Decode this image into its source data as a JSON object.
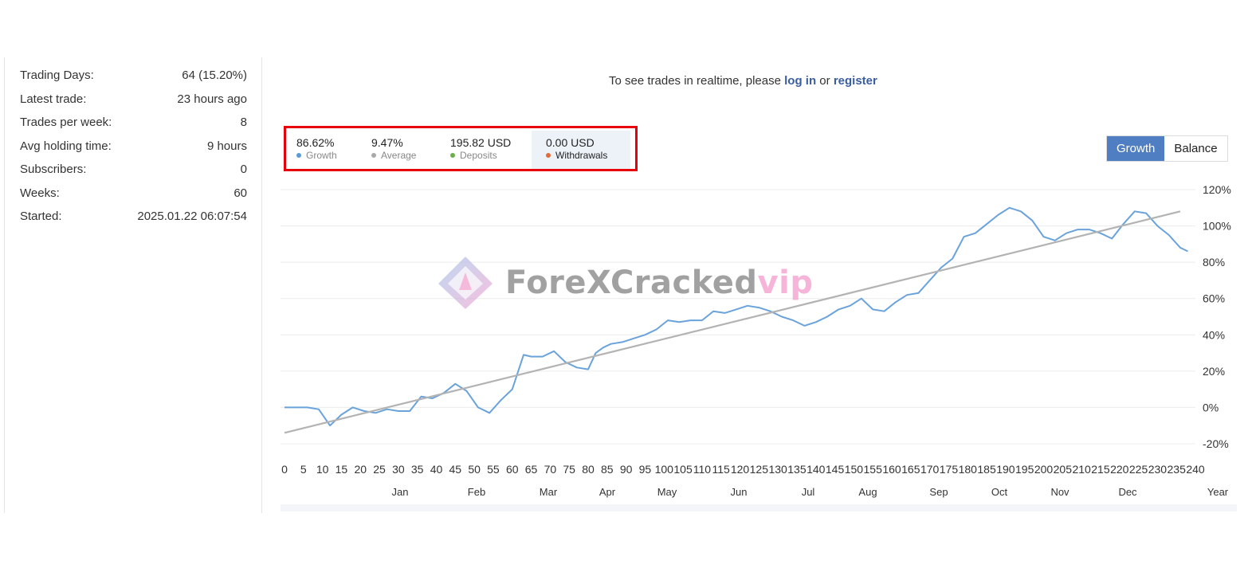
{
  "stats": [
    {
      "label": "Trading Days:",
      "value": "64 (15.20%)"
    },
    {
      "label": "Latest trade:",
      "value": "23 hours ago"
    },
    {
      "label": "Trades per week:",
      "value": "8"
    },
    {
      "label": "Avg holding time:",
      "value": "9 hours"
    },
    {
      "label": "Subscribers:",
      "value": "0"
    },
    {
      "label": "Weeks:",
      "value": "60"
    },
    {
      "label": "Started:",
      "value": "2025.01.22 06:07:54"
    }
  ],
  "notice": {
    "prefix": "To see trades in realtime, please",
    "login": "log in",
    "or": "or",
    "register": "register"
  },
  "summary": {
    "growth": {
      "value": "86.62%",
      "label": "Growth",
      "color": "#5b9bd5"
    },
    "average": {
      "value": "9.47%",
      "label": "Average",
      "color": "#a9a9a9"
    },
    "deposits": {
      "value": "195.82 USD",
      "label": "Deposits",
      "color": "#6ab04c"
    },
    "withdrawals": {
      "value": "0.00 USD",
      "label": "Withdrawals",
      "color": "#e06c3c"
    }
  },
  "toggle": {
    "growth": "Growth",
    "balance": "Balance",
    "active": "Growth"
  },
  "watermark": {
    "main": "ForeXCracked",
    "suffix": "vip"
  },
  "chart_data": {
    "type": "line",
    "x_ticks": [
      0,
      5,
      10,
      15,
      20,
      25,
      30,
      35,
      40,
      45,
      50,
      55,
      60,
      65,
      70,
      75,
      80,
      85,
      90,
      95,
      100,
      105,
      110,
      115,
      120,
      125,
      130,
      135,
      140,
      145,
      150,
      155,
      160,
      165,
      170,
      175,
      180,
      185,
      190,
      195,
      200,
      205,
      210,
      215,
      220,
      225,
      230,
      235,
      240
    ],
    "month_labels": [
      "Jan",
      "Feb",
      "Mar",
      "Apr",
      "May",
      "Jun",
      "Jul",
      "Aug",
      "Sep",
      "Oct",
      "Nov",
      "Dec"
    ],
    "year_label": "Year",
    "y_ticks": [
      "120%",
      "100%",
      "80%",
      "60%",
      "40%",
      "20%",
      "0%",
      "-20%"
    ],
    "ylim": [
      -20,
      120
    ],
    "xlim": [
      0,
      240
    ],
    "series": [
      {
        "name": "Growth",
        "color": "#6aa3dc",
        "x": [
          0,
          3,
          6,
          9,
          12,
          15,
          18,
          21,
          24,
          27,
          30,
          33,
          36,
          39,
          42,
          45,
          48,
          51,
          54,
          57,
          60,
          63,
          65,
          68,
          71,
          74,
          77,
          80,
          82,
          84,
          86,
          89,
          92,
          95,
          98,
          101,
          104,
          107,
          110,
          113,
          116,
          119,
          122,
          125,
          128,
          131,
          134,
          137,
          140,
          143,
          146,
          149,
          152,
          155,
          158,
          161,
          164,
          167,
          170,
          173,
          176,
          179,
          182,
          185,
          188,
          191,
          194,
          197,
          200,
          203,
          206,
          209,
          212,
          215,
          218,
          221,
          224,
          227,
          230,
          233,
          236,
          238
        ],
        "y": [
          0,
          0,
          0,
          -1,
          -10,
          -4,
          0,
          -2,
          -3,
          -1,
          -2,
          -2,
          6,
          5,
          8,
          13,
          9,
          0,
          -3,
          4,
          10,
          29,
          28,
          28,
          31,
          25,
          22,
          21,
          30,
          33,
          35,
          36,
          38,
          40,
          43,
          48,
          47,
          48,
          48,
          53,
          52,
          54,
          56,
          55,
          53,
          50,
          48,
          45,
          47,
          50,
          54,
          56,
          60,
          54,
          53,
          58,
          62,
          63,
          70,
          77,
          82,
          94,
          96,
          101,
          106,
          110,
          108,
          103,
          94,
          92,
          96,
          98,
          98,
          96,
          93,
          101,
          108,
          107,
          100,
          95,
          88,
          86
        ]
      },
      {
        "name": "Average",
        "color": "#b3b3b3",
        "x": [
          0,
          236
        ],
        "y": [
          -14,
          108
        ]
      }
    ]
  }
}
